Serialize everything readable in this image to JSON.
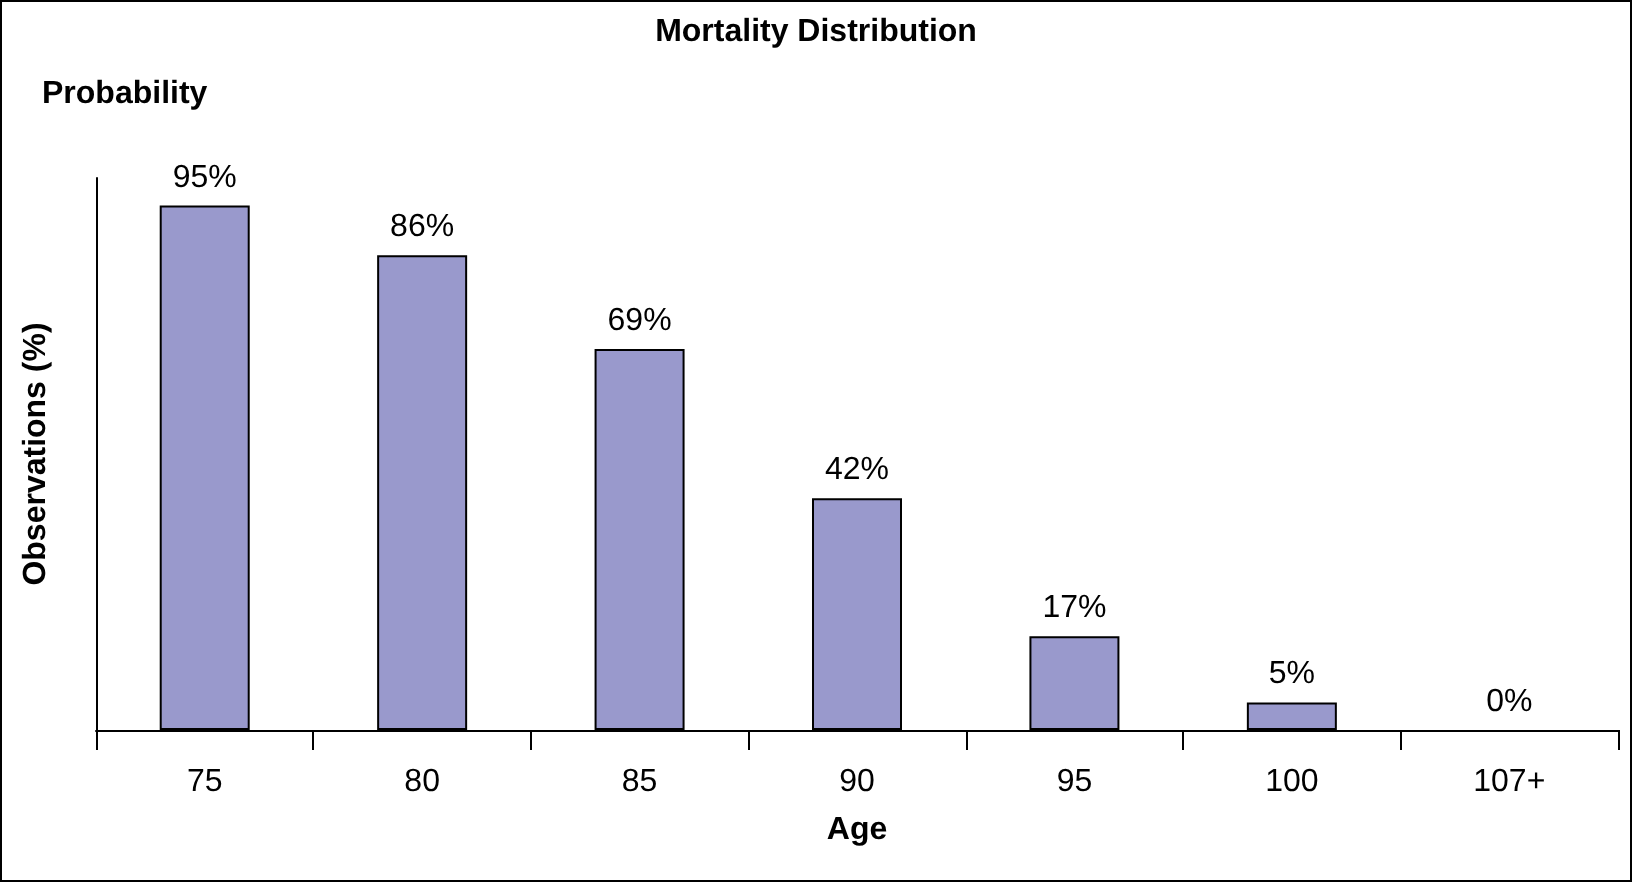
{
  "chart_data": {
    "type": "bar",
    "title": "Mortality Distribution",
    "ylabel": "Observations (%)",
    "xlabel": "Age",
    "annotations": [
      "Probability"
    ],
    "categories": [
      "75",
      "80",
      "85",
      "90",
      "95",
      "100",
      "107+"
    ],
    "series": [
      {
        "color": "#9999cc",
        "values": [
          95,
          86,
          69,
          42,
          17,
          5,
          0
        ],
        "value_labels": [
          "95%",
          "86%",
          "69%",
          "42%",
          "17%",
          "5%",
          "0%"
        ]
      }
    ],
    "ylim": [
      0,
      100
    ],
    "tick_labels": "x",
    "grid": false
  }
}
